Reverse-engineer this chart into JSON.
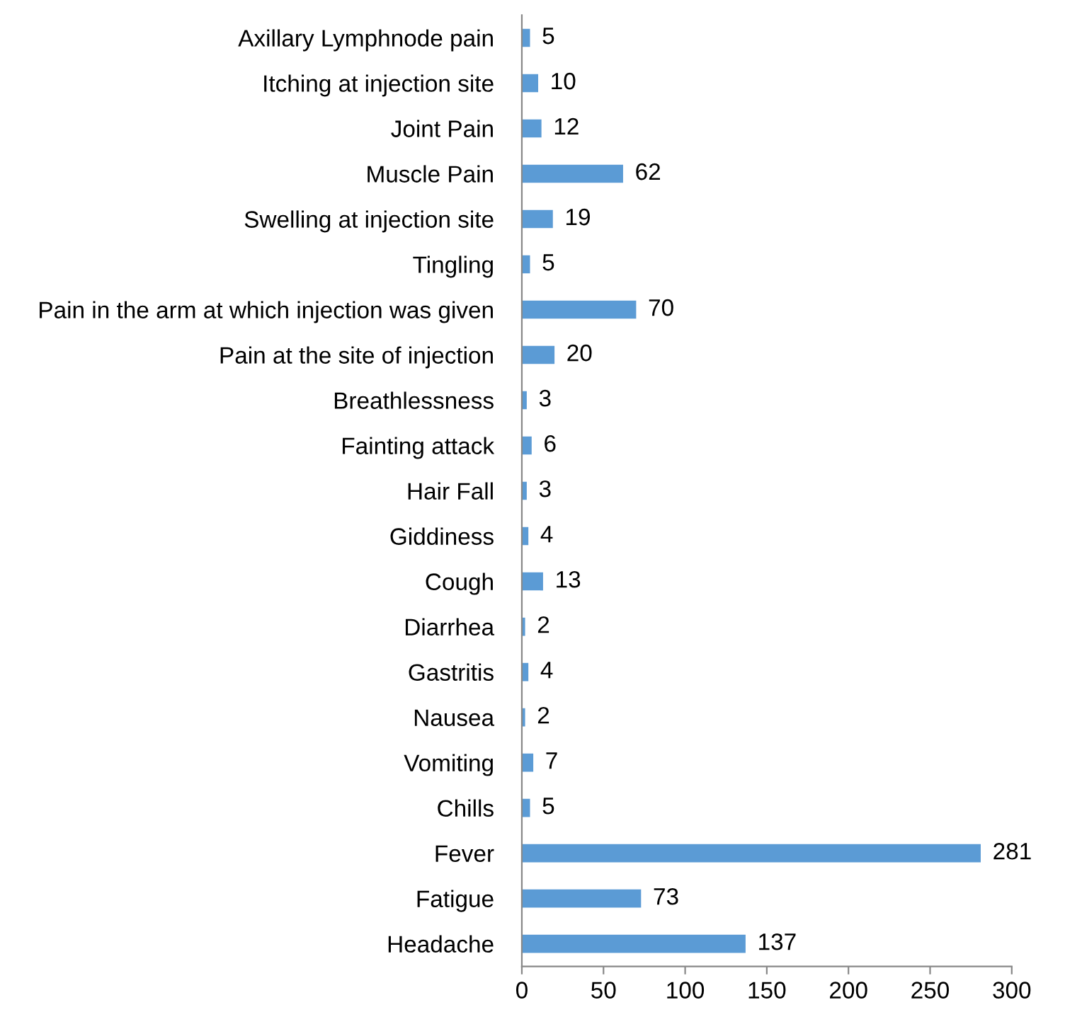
{
  "chart_data": {
    "type": "bar",
    "orientation": "horizontal",
    "categories": [
      "Axillary Lymphnode pain",
      "Itching at injection site",
      "Joint Pain",
      "Muscle Pain",
      "Swelling at injection site",
      "Tingling",
      "Pain in the arm at which injection was given",
      "Pain at the site of injection",
      "Breathlessness",
      "Fainting attack",
      "Hair Fall",
      "Giddiness",
      "Cough",
      "Diarrhea",
      "Gastritis",
      "Nausea",
      "Vomiting",
      "Chills",
      "Fever",
      "Fatigue",
      "Headache"
    ],
    "values": [
      5,
      10,
      12,
      62,
      19,
      5,
      70,
      20,
      3,
      6,
      3,
      4,
      13,
      2,
      4,
      2,
      7,
      5,
      281,
      73,
      137
    ],
    "color": "#5b9bd5",
    "xlim": [
      0,
      300
    ],
    "xticks": [
      0,
      50,
      100,
      150,
      200,
      250,
      300
    ],
    "data_labels": true,
    "grid": false,
    "legend": false
  }
}
